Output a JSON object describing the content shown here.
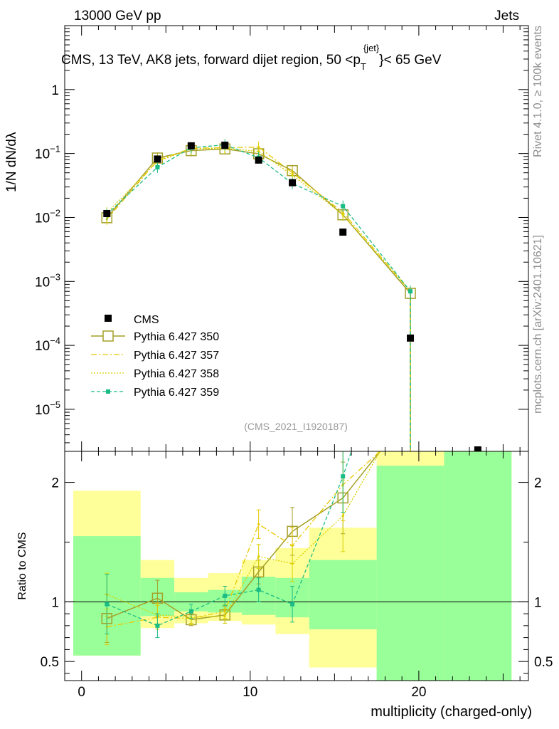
{
  "header": {
    "left": "13000 GeV pp",
    "right": "Jets"
  },
  "side_labels": {
    "rivet": "Rivet 4.1.0, ≥ 100k events",
    "mcplots": "mcplots.cern.ch [arXiv:2401.10621]"
  },
  "colors": {
    "data": "#000000",
    "p350": "#a4a028",
    "p357": "#e8c800",
    "p358": "#d8d000",
    "p359": "#1abc84",
    "band_green": "#99ff99",
    "band_yellow": "#ffff99"
  },
  "chart_data": [
    {
      "type": "line",
      "title": "CMS, 13 TeV, AK8 jets, forward dijet region, 50 <p",
      "title_sup": "{jet}",
      "title_sub": "T",
      "title_end": "}< 65 GeV",
      "analysis_tag": "(CMS_2021_I1920187)",
      "ylabel": "1/N dN/dλ",
      "yscale": "log",
      "ylim": [
        2.2e-06,
        10
      ],
      "xlim": [
        -1,
        26.5
      ],
      "ytick_values": [
        1e-05,
        0.0001,
        0.001,
        0.01,
        0.1,
        1
      ],
      "ytick_labels": [
        {
          "base": "10",
          "exp": "−5"
        },
        {
          "base": "10",
          "exp": "−4"
        },
        {
          "base": "10",
          "exp": "−3"
        },
        {
          "base": "10",
          "exp": "−2"
        },
        {
          "base": "10",
          "exp": "−1"
        },
        {
          "base": "1",
          "exp": ""
        }
      ],
      "data": {
        "name": "CMS",
        "x": [
          1.5,
          4.5,
          6.5,
          8.5,
          10.5,
          12.5,
          15.5,
          19.5,
          23.5
        ],
        "y": [
          0.0115,
          0.082,
          0.132,
          0.135,
          0.079,
          0.035,
          0.0059,
          0.00013,
          2.1e-06
        ]
      },
      "series": [
        {
          "name": "Pythia 6.427 350",
          "style": "solid-open-square",
          "x": [
            1.5,
            4.5,
            6.5,
            8.5,
            10.5,
            12.5,
            15.5,
            19.5
          ],
          "y": [
            0.0099,
            0.085,
            0.111,
            0.118,
            0.099,
            0.054,
            0.011,
            0.00065
          ]
        },
        {
          "name": "Pythia 6.427 357",
          "style": "dashdot",
          "x": [
            1.5,
            4.5,
            6.5,
            8.5,
            10.5,
            12.5,
            15.5,
            19.5
          ],
          "y": [
            0.0094,
            0.078,
            0.12,
            0.124,
            0.126,
            0.05,
            0.012,
            0.0007
          ]
        },
        {
          "name": "Pythia 6.427 358",
          "style": "dotted",
          "x": [
            1.5,
            4.5,
            6.5,
            8.5,
            10.5,
            12.5,
            15.5,
            19.5
          ],
          "y": [
            0.0118,
            0.075,
            0.118,
            0.121,
            0.108,
            0.046,
            0.011,
            0.0007
          ]
        },
        {
          "name": "Pythia 6.427 359",
          "style": "dashed-filled-square",
          "x": [
            1.5,
            4.5,
            6.5,
            8.5,
            10.5,
            12.5,
            15.5,
            19.5
          ],
          "y": [
            0.0112,
            0.061,
            0.123,
            0.137,
            0.086,
            0.034,
            0.015,
            0.0007
          ]
        }
      ]
    },
    {
      "type": "line",
      "ylabel": "Ratio to CMS",
      "xlabel": "multiplicity (charged-only)",
      "ylim": [
        0.34,
        2.26
      ],
      "xlim": [
        -1,
        26.5
      ],
      "xtick_values": [
        0,
        10,
        20
      ],
      "xtick_labels": [
        "0",
        "10",
        "20"
      ],
      "ytick_values": [
        0.5,
        1,
        2
      ],
      "ytick_labels": [
        "0.5",
        "1",
        "2"
      ],
      "bands": [
        {
          "x0": -0.6,
          "x1": 3.5,
          "y_lo": 0.55,
          "y_hi": 1.93,
          "g_lo": 0.55,
          "g_hi": 1.55
        },
        {
          "x0": 3.5,
          "x1": 5.5,
          "y_lo": 0.78,
          "y_hi": 1.35,
          "g_lo": 0.88,
          "g_hi": 1.2
        },
        {
          "x0": 5.5,
          "x1": 7.5,
          "y_lo": 0.82,
          "y_hi": 1.2,
          "g_lo": 0.92,
          "g_hi": 1.08
        },
        {
          "x0": 7.5,
          "x1": 9.5,
          "y_lo": 0.84,
          "y_hi": 1.24,
          "g_lo": 0.91,
          "g_hi": 1.1
        },
        {
          "x0": 9.5,
          "x1": 11.5,
          "y_lo": 0.81,
          "y_hi": 1.35,
          "g_lo": 0.89,
          "g_hi": 1.21
        },
        {
          "x0": 11.5,
          "x1": 13.5,
          "y_lo": 0.73,
          "y_hi": 1.45,
          "g_lo": 0.87,
          "g_hi": 1.2
        },
        {
          "x0": 13.5,
          "x1": 17.5,
          "y_lo": 0.45,
          "y_hi": 1.62,
          "g_lo": 0.77,
          "g_hi": 1.35
        },
        {
          "x0": 17.5,
          "x1": 21.5,
          "y_lo": 0.34,
          "y_hi": 2.26,
          "g_lo": 0.34,
          "g_hi": 2.14
        },
        {
          "x0": 21.5,
          "x1": 25.5,
          "y_lo": 0.34,
          "y_hi": 2.26,
          "g_lo": 0.34,
          "g_hi": 2.26
        }
      ],
      "series": [
        {
          "name": "Pythia 6.427 350",
          "x": [
            1.5,
            4.5,
            6.5,
            8.5,
            10.5,
            12.5,
            15.5,
            17.7
          ],
          "y": [
            0.86,
            1.03,
            0.85,
            0.89,
            1.25,
            1.59,
            1.87,
            2.26
          ],
          "err": [
            0.2,
            0.15,
            0.05,
            0.07,
            0.1,
            0.2,
            0.3,
            0
          ]
        },
        {
          "name": "Pythia 6.427 357",
          "x": [
            1.5,
            4.5,
            6.5,
            8.5,
            10.5,
            12.5,
            15.5,
            17.7
          ],
          "y": [
            0.79,
            0.87,
            0.86,
            0.92,
            1.65,
            1.47,
            1.98,
            2.26
          ],
          "err": [
            0.15,
            0.1,
            0.05,
            0.06,
            0.12,
            0.15,
            0.3,
            0
          ]
        },
        {
          "name": "Pythia 6.427 358",
          "x": [
            1.5,
            4.5,
            6.5,
            8.5,
            10.5,
            12.5,
            15.5,
            17.7
          ],
          "y": [
            1.06,
            0.89,
            0.87,
            0.88,
            1.38,
            1.32,
            1.72,
            2.26
          ],
          "err": [
            0.18,
            0.1,
            0.05,
            0.06,
            0.1,
            0.15,
            0.3,
            0
          ]
        },
        {
          "name": "Pythia 6.427 359",
          "x": [
            1.5,
            4.5,
            6.5,
            8.5,
            10.5,
            12.5,
            15.5,
            16.0
          ],
          "y": [
            0.98,
            0.8,
            0.92,
            1.05,
            1.1,
            0.98,
            2.05,
            2.26
          ],
          "err": [
            0.25,
            0.1,
            0.06,
            0.08,
            0.1,
            0.15,
            0.3,
            0
          ]
        }
      ]
    }
  ]
}
